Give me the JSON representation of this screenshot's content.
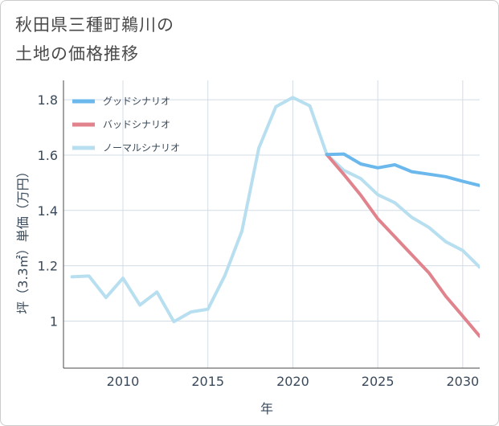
{
  "title": {
    "line1": "秋田県三種町鵜川の",
    "line2": "土地の価格推移"
  },
  "chart_data": {
    "type": "line",
    "xlabel": "年",
    "ylabel": "坪（3.3㎡）単価（万円）",
    "xlim": [
      2006.5,
      2031
    ],
    "ylim": [
      0.83,
      1.87
    ],
    "x_ticks": [
      2010,
      2015,
      2020,
      2025,
      2030
    ],
    "x_tick_labels": [
      "2010",
      "2015",
      "2020",
      "2025",
      "2030"
    ],
    "y_ticks": [
      1.0,
      1.2,
      1.4,
      1.6,
      1.8
    ],
    "y_tick_labels": [
      "1",
      "1.2",
      "1.4",
      "1.6",
      "1.8"
    ],
    "grid": true,
    "legend_position": "top-left",
    "series": [
      {
        "name": "グッドシナリオ",
        "color": "#6bb8ec",
        "x": [
          2022,
          2023,
          2024,
          2025,
          2026,
          2027,
          2028,
          2029,
          2030,
          2031
        ],
        "values": [
          1.602,
          1.604,
          1.568,
          1.554,
          1.565,
          1.54,
          1.531,
          1.522,
          1.505,
          1.49
        ]
      },
      {
        "name": "バッドシナリオ",
        "color": "#e0838c",
        "x": [
          2022,
          2023,
          2024,
          2025,
          2026,
          2027,
          2028,
          2029,
          2030,
          2031
        ],
        "values": [
          1.602,
          1.53,
          1.455,
          1.37,
          1.305,
          1.24,
          1.175,
          1.09,
          1.018,
          0.945
        ]
      },
      {
        "name": "ノーマルシナリオ",
        "color": "#b8dff0",
        "x": [
          2007,
          2008,
          2009,
          2010,
          2011,
          2012,
          2013,
          2014,
          2015,
          2016,
          2017,
          2018,
          2019,
          2020,
          2021,
          2022,
          2023,
          2024,
          2025,
          2026,
          2027,
          2028,
          2029,
          2030,
          2031
        ],
        "values": [
          1.16,
          1.163,
          1.085,
          1.155,
          1.058,
          1.105,
          0.998,
          1.033,
          1.043,
          1.165,
          1.325,
          1.625,
          1.775,
          1.808,
          1.778,
          1.602,
          1.545,
          1.515,
          1.457,
          1.428,
          1.375,
          1.339,
          1.287,
          1.255,
          1.195
        ]
      }
    ]
  }
}
